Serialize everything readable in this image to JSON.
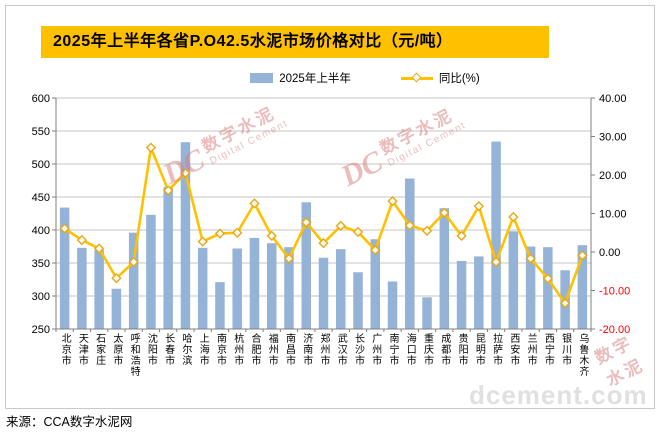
{
  "title": "2025年上半年各省P.O42.5水泥市场价格对比（元/吨）",
  "legend": {
    "bar_label": "2025年上半年",
    "line_label": "同比(%)"
  },
  "source": "来源：CCA数字水泥网",
  "watermark": {
    "brand_short": "DC",
    "brand_cn": "数字水泥",
    "brand_en": "Digital Cement",
    "site": "dcement.com"
  },
  "colors": {
    "bar": "#95B3D7",
    "line": "#FFC000",
    "marker_fill": "#FFFDF0",
    "marker_stroke": "#E6A817",
    "title_bg": "#FFC000",
    "grid": "#C6C6C6",
    "axis": "#808080",
    "negative_label": "#FF0000",
    "watermark": "#D97C7C",
    "site_watermark": "#E0E0E0"
  },
  "chart_data": {
    "type": "bar",
    "title": "2025年上半年各省P.O42.5水泥市场价格对比（元/吨）",
    "categories": [
      "北京市",
      "天津市",
      "石家庄",
      "太原市",
      "呼和浩特",
      "沈阳市",
      "长春市",
      "哈尔滨",
      "上海市",
      "南京市",
      "杭州市",
      "合肥市",
      "福州市",
      "南昌市",
      "济南市",
      "郑州市",
      "武汉市",
      "长沙市",
      "广州市",
      "南宁市",
      "海口市",
      "重庆市",
      "成都市",
      "贵阳市",
      "昆明市",
      "拉萨市",
      "西安市",
      "兰州市",
      "西宁市",
      "银川市",
      "乌鲁木齐"
    ],
    "series": [
      {
        "name": "2025年上半年",
        "chart": "bar",
        "axis": "left",
        "values": [
          434,
          373,
          370,
          311,
          396,
          423,
          465,
          533,
          373,
          321,
          372,
          388,
          380,
          374,
          442,
          358,
          371,
          336,
          386,
          322,
          478,
          298,
          433,
          353,
          360,
          534,
          398,
          375,
          374,
          339,
          377
        ]
      },
      {
        "name": "同比(%)",
        "chart": "line",
        "axis": "right",
        "values": [
          6.1,
          3.1,
          0.9,
          -6.8,
          -2.6,
          27.1,
          16.0,
          20.5,
          2.7,
          4.8,
          5.0,
          12.6,
          4.2,
          -1.7,
          7.7,
          2.3,
          6.8,
          5.2,
          0.5,
          13.2,
          6.9,
          5.5,
          10.2,
          4.2,
          11.9,
          -2.6,
          9.1,
          -1.7,
          -6.9,
          -13.3,
          -0.9
        ]
      }
    ],
    "left_axis": {
      "min": 250,
      "max": 600,
      "step": 50,
      "ticks": [
        "600",
        "550",
        "500",
        "450",
        "400",
        "350",
        "300",
        "250"
      ]
    },
    "right_axis": {
      "min": -20,
      "max": 40,
      "step": 10,
      "ticks": [
        "40.00",
        "30.00",
        "20.00",
        "10.00",
        "0.00",
        "-10.00",
        "-20.00"
      ]
    },
    "grid": true,
    "legend_position": "top"
  }
}
